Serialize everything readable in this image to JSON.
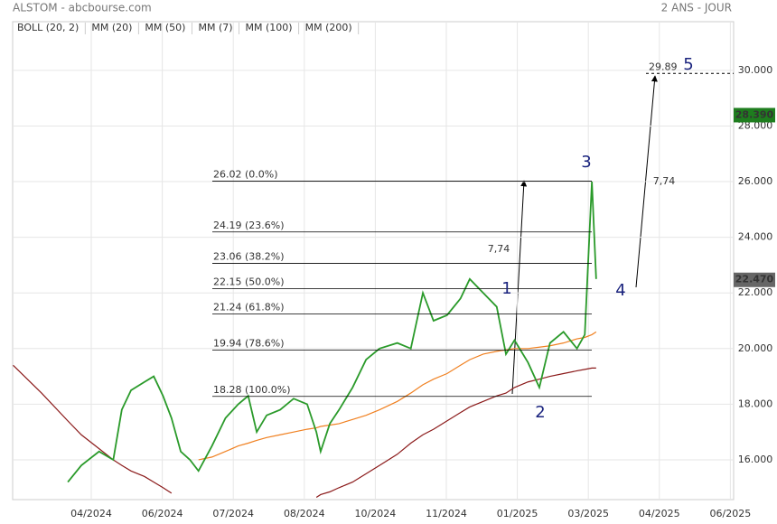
{
  "header": {
    "title": "ALSTOM - abcbourse.com",
    "period": "2 ANS - JOUR"
  },
  "chart_data": {
    "type": "line",
    "legend": [
      {
        "name": "BOLL (20, 2)",
        "color": "#333333"
      },
      {
        "name": "MM (20)",
        "color": "#3a6fd8"
      },
      {
        "name": "MM (50)",
        "color": "#e03030"
      },
      {
        "name": "MM (7)",
        "color": "#2a9a2a"
      },
      {
        "name": "MM (100)",
        "color": "#f08020"
      },
      {
        "name": "MM (200)",
        "color": "#8b1a1a"
      }
    ],
    "x": [
      -11,
      -7,
      -3.3,
      -1.4,
      1.1,
      3.1,
      4.3,
      5.6,
      7.5,
      8.8,
      10.1,
      11.3,
      12.6,
      13.9,
      15.1,
      17.0,
      18.9,
      20.7,
      22.1,
      23.3,
      24.7,
      26.6,
      28.5,
      30.4,
      31.7,
      32.3,
      33.6,
      34.9,
      36.8,
      38.7,
      40.6,
      43.1,
      45.0,
      46.7,
      48.2,
      50.1,
      52.0,
      53.3,
      55.2,
      57.1,
      58.4,
      59.6,
      61.5,
      63.1,
      64.6,
      66.5,
      68.4,
      69.5,
      70.5,
      71.1
    ],
    "price": {
      "color": "#2a9a2a",
      "values": [
        null,
        null,
        15.2,
        15.8,
        16.3,
        16.0,
        17.8,
        18.5,
        18.8,
        19.0,
        18.3,
        17.5,
        16.3,
        16.0,
        15.6,
        16.5,
        17.5,
        18.0,
        18.3,
        17.0,
        17.6,
        17.8,
        18.2,
        18.0,
        17.0,
        16.3,
        17.3,
        17.8,
        18.6,
        19.6,
        20.0,
        20.2,
        20.0,
        22.0,
        21.0,
        21.2,
        21.8,
        22.5,
        22.0,
        21.5,
        19.8,
        20.3,
        19.5,
        18.6,
        20.2,
        20.6,
        20.0,
        20.5,
        26.0,
        22.5
      ]
    },
    "series": [
      {
        "name": "MM (100)",
        "color": "#f08020",
        "values": [
          null,
          null,
          null,
          null,
          null,
          null,
          null,
          null,
          null,
          null,
          null,
          null,
          null,
          null,
          16.0,
          16.1,
          16.3,
          16.5,
          16.6,
          16.7,
          16.8,
          16.9,
          17.0,
          17.1,
          17.15,
          17.2,
          17.25,
          17.3,
          17.45,
          17.6,
          17.8,
          18.1,
          18.4,
          18.7,
          18.9,
          19.1,
          19.4,
          19.6,
          19.8,
          19.9,
          19.95,
          20.0,
          20.0,
          20.05,
          20.1,
          20.2,
          20.35,
          20.4,
          20.5,
          20.6
        ]
      },
      {
        "name": "MM (200)",
        "color": "#8b1a1a",
        "values": [
          19.4,
          18.4,
          17.4,
          16.9,
          16.4,
          16.0,
          15.8,
          15.6,
          15.4,
          15.2,
          15.0,
          14.8,
          null,
          null,
          null,
          null,
          null,
          null,
          null,
          null,
          null,
          null,
          null,
          null,
          14.65,
          14.75,
          14.85,
          15.0,
          15.2,
          15.5,
          15.8,
          16.2,
          16.6,
          16.9,
          17.1,
          17.4,
          17.7,
          17.9,
          18.1,
          18.3,
          18.4,
          18.6,
          18.8,
          18.9,
          19.0,
          19.1,
          19.2,
          19.25,
          19.3,
          19.3
        ]
      }
    ],
    "xlim": [
      -11.07,
      90.46
    ],
    "xticks": [
      {
        "value": 0,
        "label": "04/2024"
      },
      {
        "value": 10,
        "label": "06/2024"
      },
      {
        "value": 20,
        "label": "07/2024"
      },
      {
        "value": 30,
        "label": "08/2024"
      },
      {
        "value": 40,
        "label": "10/2024"
      },
      {
        "value": 50,
        "label": "11/2024"
      },
      {
        "value": 60,
        "label": "01/2025"
      },
      {
        "value": 70,
        "label": "03/2025"
      },
      {
        "value": 80,
        "label": "04/2025"
      },
      {
        "value": 90,
        "label": "06/2025"
      }
    ],
    "ylim": [
      14.57,
      31.75
    ],
    "yticks": [
      {
        "value": 16,
        "label": "16.000"
      },
      {
        "value": 18,
        "label": "18.000"
      },
      {
        "value": 20,
        "label": "20.000"
      },
      {
        "value": 22,
        "label": "22.000"
      },
      {
        "value": 24,
        "label": "24.000"
      },
      {
        "value": 26,
        "label": "26.000"
      },
      {
        "value": 28,
        "label": "28.000"
      },
      {
        "value": 30,
        "label": "30.000"
      }
    ],
    "grid": true,
    "fib_levels": [
      {
        "value": 26.02,
        "label": "26.02  (0.0%)"
      },
      {
        "value": 24.19,
        "label": "24.19  (23.6%)"
      },
      {
        "value": 23.06,
        "label": "23.06  (38.2%)"
      },
      {
        "value": 22.15,
        "label": "22.15  (50.0%)"
      },
      {
        "value": 21.24,
        "label": "21.24  (61.8%)"
      },
      {
        "value": 19.94,
        "label": "19.94  (78.6%)"
      },
      {
        "value": 18.28,
        "label": "18.28  (100.0%)"
      }
    ],
    "waves": [
      "1",
      "2",
      "3",
      "4",
      "5"
    ],
    "annotations": [
      "7,74",
      "7,74"
    ],
    "target": 29.89,
    "price_tags": [
      {
        "value": 28.39,
        "label": "28.390",
        "color": "#1e7d1e"
      },
      {
        "value": 22.47,
        "label": "22.470",
        "color": "#666666"
      }
    ]
  }
}
